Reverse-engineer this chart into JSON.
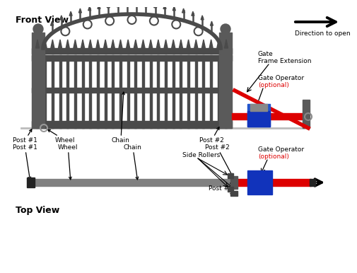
{
  "bg_color": "#ffffff",
  "gate_color": "#4a4a4a",
  "gate_color2": "#666666",
  "post_color": "#5a5a5a",
  "red_color": "#dd0000",
  "blue_color": "#1133bb",
  "blue_color2": "#2255cc",
  "rail_color": "#808080",
  "dark_color": "#222222",
  "ground_color": "#bbbbbb",
  "title_front": "Front View",
  "title_top": "Top View",
  "direction_label": "Direction to open",
  "label_post1": "Post #1",
  "label_wheel": "Wheel",
  "label_chain": "Chain",
  "label_post2": "Post #2",
  "label_post3": "Post #3",
  "label_side_rollers": "Side Rollers",
  "label_gate_frame_l1": "Gate",
  "label_gate_frame_l2": "Frame Extension",
  "label_gate_op": "Gate Operator",
  "label_optional": "(optional)"
}
